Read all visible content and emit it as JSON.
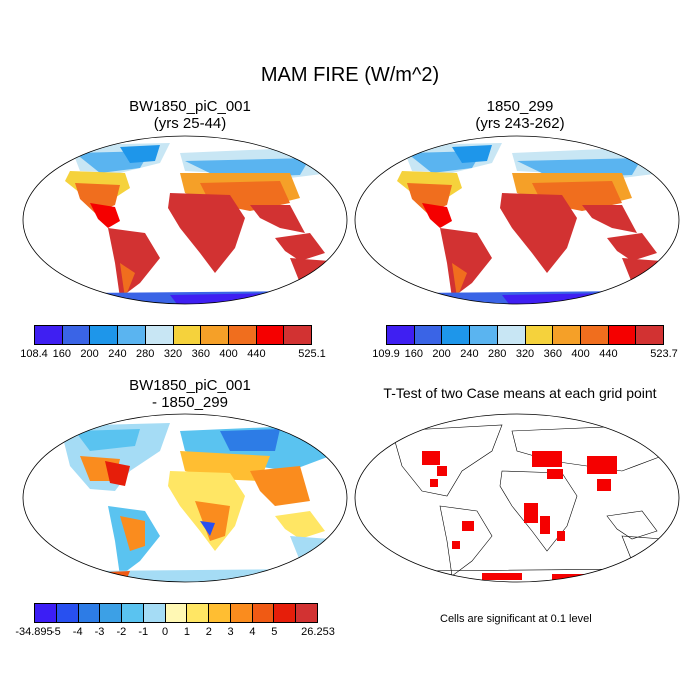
{
  "title": "MAM FIRE (W/m^2)",
  "panels": {
    "p1": {
      "title1": "BW1850_piC_001",
      "title2": "(yrs 25-44)"
    },
    "p2": {
      "title1": "1850_299",
      "title2": "(yrs 243-262)"
    },
    "p3": {
      "title1": "BW1850_piC_001",
      "title2": "- 1850_299"
    },
    "p4": {
      "title1": "T-Test of two Case means at each grid point",
      "note": "Cells are significant at 0.1 level"
    }
  },
  "colorbars": {
    "cb1": {
      "labels": [
        "108.4",
        "160",
        "200",
        "240",
        "280",
        "320",
        "360",
        "400",
        "440",
        "525.1"
      ],
      "colors": [
        "#3f1ff2",
        "#3a64e6",
        "#1e96ea",
        "#5ab4f0",
        "#c8e6f4",
        "#f5d23c",
        "#f5a028",
        "#f06e1e",
        "#f50000",
        "#d23232"
      ]
    },
    "cb2": {
      "labels": [
        "109.9",
        "160",
        "200",
        "240",
        "280",
        "320",
        "360",
        "400",
        "440",
        "523.7"
      ],
      "colors": [
        "#3f1ff2",
        "#3a64e6",
        "#1e96ea",
        "#5ab4f0",
        "#c8e6f4",
        "#f5d23c",
        "#f5a028",
        "#f06e1e",
        "#f50000",
        "#d23232"
      ]
    },
    "cb3": {
      "labels": [
        "-34.895",
        "-5",
        "-4",
        "-3",
        "-2",
        "-1",
        "0",
        "1",
        "2",
        "3",
        "4",
        "5",
        "26.253"
      ],
      "colors": [
        "#3c1ef5",
        "#2850f0",
        "#2d7ce6",
        "#3ca0e6",
        "#5ac3f0",
        "#a5dcf5",
        "#fff8b4",
        "#ffe664",
        "#ffbe32",
        "#fa8c1e",
        "#f05a14",
        "#e61e0a",
        "#d23232"
      ]
    }
  }
}
